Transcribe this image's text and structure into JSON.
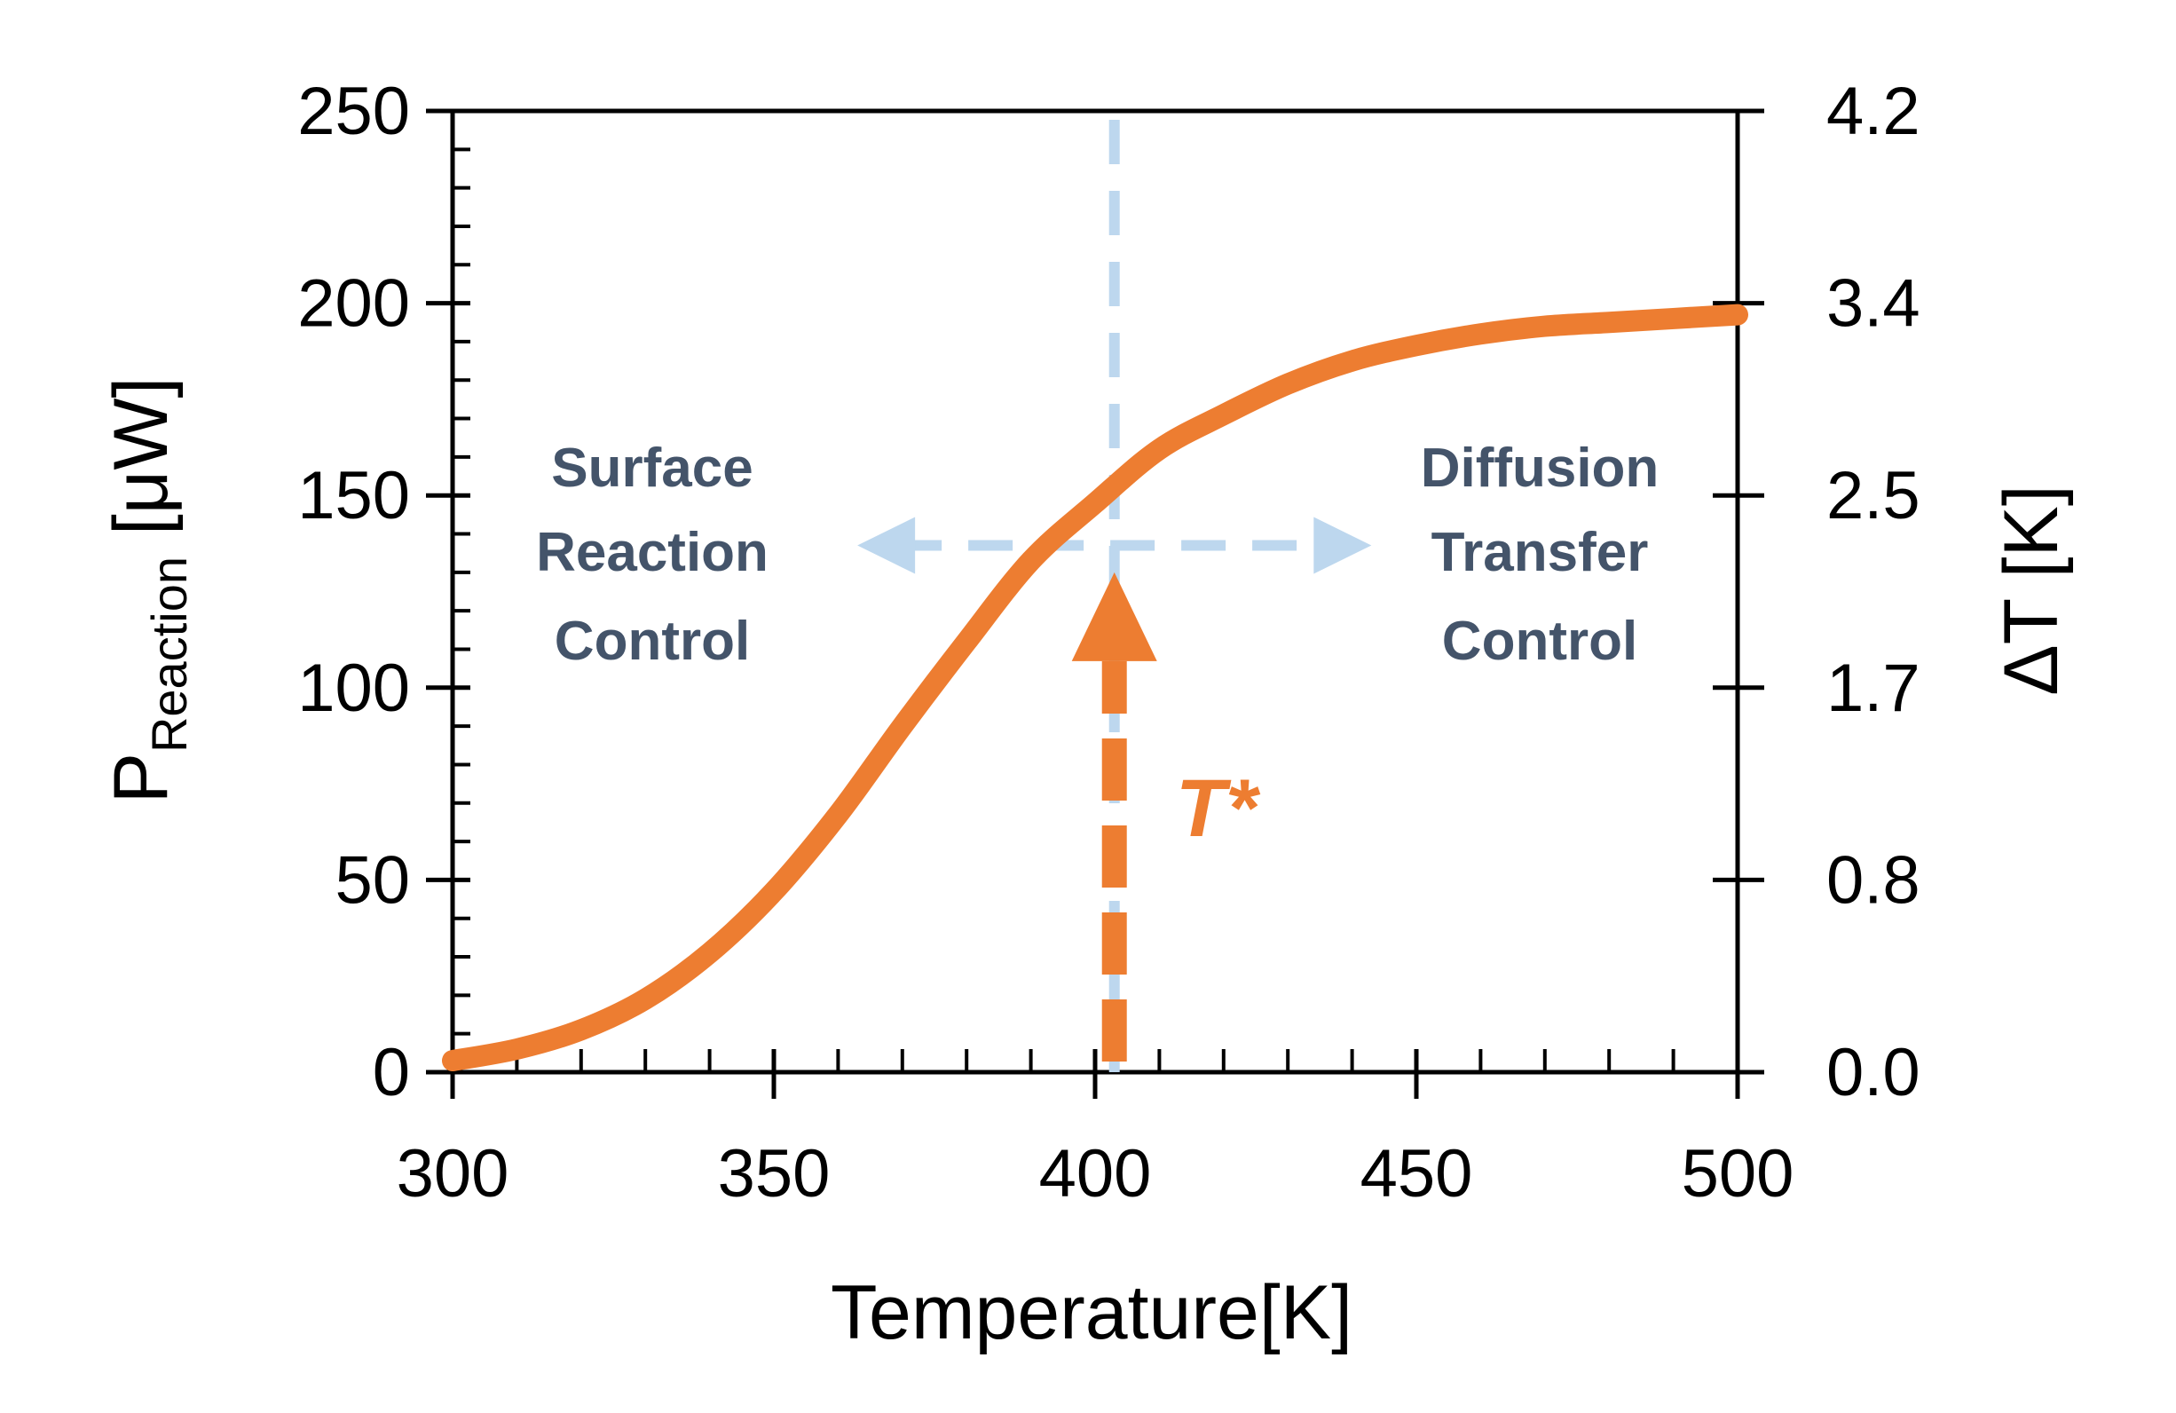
{
  "chart_data": {
    "type": "line",
    "title": "",
    "xlabel": "Temperature[K]",
    "ylabel_main": "P",
    "ylabel_sub": "Reaction",
    "ylabel_unit": " [μW]",
    "y2label": "ΔT [K]",
    "xlim": [
      300,
      500
    ],
    "ylim": [
      0,
      250
    ],
    "y2lim": [
      0,
      4.2
    ],
    "x_ticks": [
      300,
      350,
      400,
      450,
      500
    ],
    "y_ticks": [
      0,
      50,
      100,
      150,
      200,
      250
    ],
    "y2_tick_labels": [
      "0.0",
      "0.8",
      "1.7",
      "2.5",
      "3.4",
      "4.2"
    ],
    "series": [
      {
        "name": "P_Reaction",
        "color": "#ED7D31",
        "x": [
          300,
          310,
          320,
          330,
          340,
          350,
          360,
          370,
          380,
          390,
          400,
          410,
          420,
          430,
          440,
          450,
          460,
          470,
          480,
          490,
          500
        ],
        "y": [
          3,
          6,
          11,
          19,
          31,
          47,
          67,
          90,
          112,
          133,
          148,
          162,
          171,
          179,
          185,
          189,
          192,
          194,
          195,
          196,
          197
        ]
      }
    ],
    "annotations": {
      "t_star_label": "T*",
      "t_star_x": 403,
      "t_star_arrow_tip_y": 130,
      "horizontal_arrow_y": 137,
      "horizontal_arrow_from_x": 363,
      "horizontal_arrow_to_x": 443,
      "left_region": [
        "Surface",
        "Reaction",
        "Control"
      ],
      "right_region": [
        "Diffusion",
        "Transfer",
        "Control"
      ]
    },
    "colors": {
      "curve": "#ED7D31",
      "guide": "#BDD7EE",
      "region_text": "#44546A",
      "axis": "#000000"
    }
  }
}
